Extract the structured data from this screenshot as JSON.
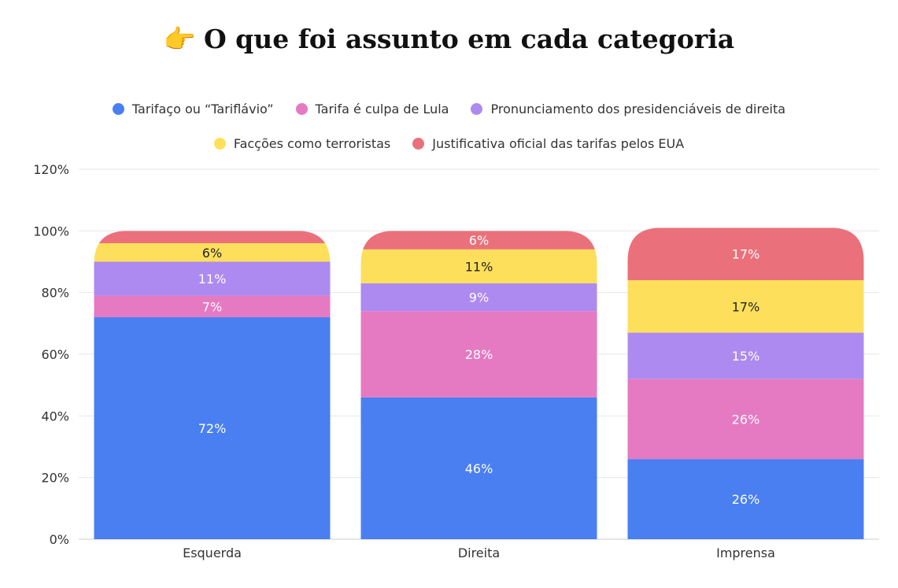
{
  "title": "O que foi assunto em cada categoria",
  "title_icon": "👉",
  "chart_data": {
    "type": "bar",
    "stacked": true,
    "categories": [
      "Esquerda",
      "Direita",
      "Imprensa"
    ],
    "series": [
      {
        "name": "Tarifaço ou “Tariflávio”",
        "color": "#4a7ff2",
        "values": [
          72,
          46,
          26
        ],
        "labels": [
          "72%",
          "46%",
          "26%"
        ]
      },
      {
        "name": "Tarifa é culpa de Lula",
        "color": "#e57ac2",
        "values": [
          7,
          28,
          26
        ],
        "labels": [
          "7%",
          "28%",
          "26%"
        ]
      },
      {
        "name": "Pronunciamento dos presidenciáveis de direita",
        "color": "#ad8af0",
        "values": [
          11,
          9,
          15
        ],
        "labels": [
          "11%",
          "9%",
          "15%"
        ]
      },
      {
        "name": "Facções como terroristas",
        "color": "#fddf5c",
        "values": [
          6,
          11,
          17
        ],
        "labels": [
          "6%",
          "11%",
          "17%"
        ]
      },
      {
        "name": "Justificativa oficial das tarifas pelos EUA",
        "color": "#ea717b",
        "values": [
          4,
          6,
          17
        ],
        "labels": [
          "",
          "6%",
          "17%"
        ]
      }
    ],
    "yticks": [
      "0%",
      "20%",
      "40%",
      "60%",
      "80%",
      "100%",
      "120%"
    ],
    "ylim": [
      0,
      120
    ],
    "grid": true,
    "legend": "top"
  }
}
